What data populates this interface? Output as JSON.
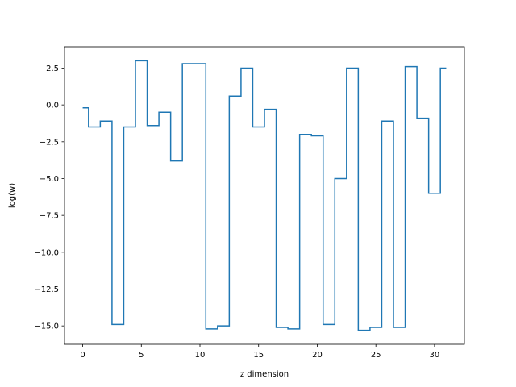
{
  "chart_data": {
    "type": "line",
    "drawstyle": "steps-mid",
    "title": "",
    "xlabel": "z dimension",
    "ylabel": "log(w)",
    "xlim": [
      -1.55,
      32.55
    ],
    "ylim": [
      -16.25,
      3.95
    ],
    "grid": false,
    "x_ticks": [
      0,
      5,
      10,
      15,
      20,
      25,
      30
    ],
    "x_tick_labels": [
      "0",
      "5",
      "10",
      "15",
      "20",
      "25",
      "30"
    ],
    "y_ticks": [
      2.5,
      0.0,
      -2.5,
      -5.0,
      -7.5,
      -10.0,
      -12.5,
      -15.0
    ],
    "y_tick_labels": [
      "2.5",
      "0.0",
      "−2.5",
      "−5.0",
      "−7.5",
      "−10.0",
      "−12.5",
      "−15.0"
    ],
    "series": [
      {
        "color": "#1f77b4",
        "x": [
          0,
          1,
          2,
          3,
          4,
          5,
          6,
          7,
          8,
          9,
          10,
          11,
          12,
          13,
          14,
          15,
          16,
          17,
          18,
          19,
          20,
          21,
          22,
          23,
          24,
          25,
          26,
          27,
          28,
          29,
          30,
          31
        ],
        "y": [
          -0.2,
          -1.5,
          -1.1,
          -14.9,
          -1.5,
          3.0,
          -1.4,
          -0.5,
          -3.8,
          2.8,
          2.8,
          -15.2,
          -15.0,
          0.6,
          2.5,
          -1.5,
          -0.3,
          -15.1,
          -15.2,
          -2.0,
          -2.1,
          -14.9,
          -5.0,
          2.5,
          -15.3,
          -15.1,
          -1.1,
          -15.1,
          2.6,
          -0.9,
          -6.0,
          2.5
        ]
      }
    ]
  }
}
